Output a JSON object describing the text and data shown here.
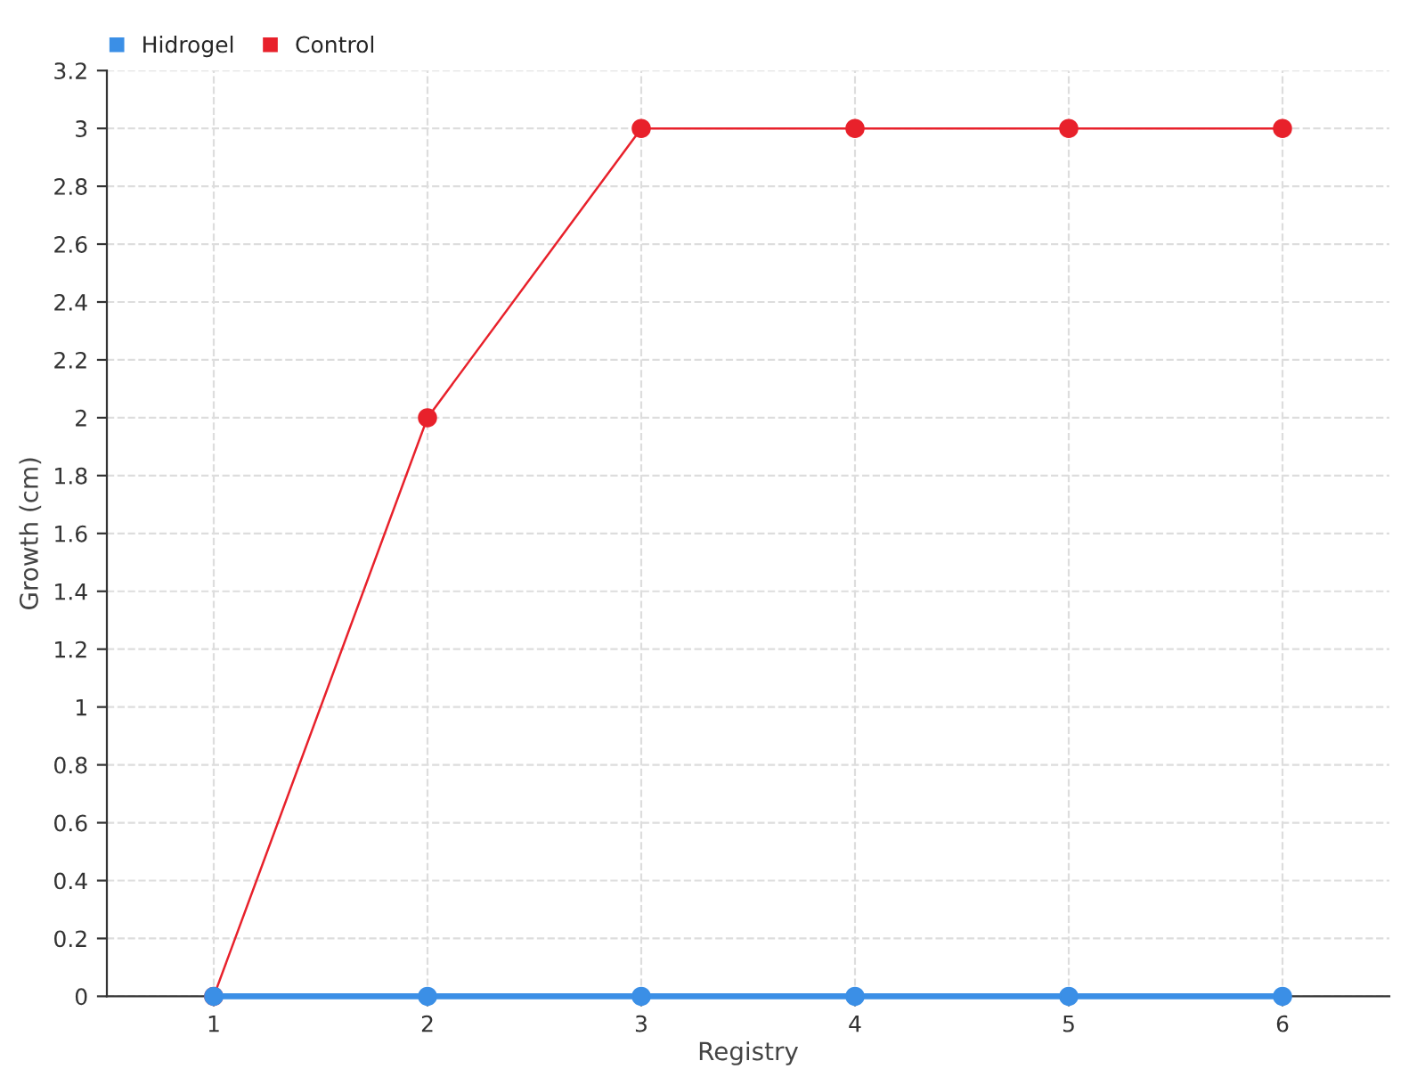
{
  "chart_data": {
    "type": "line",
    "xlabel": "Registry",
    "ylabel": "Growth (cm)",
    "x": [
      1,
      2,
      3,
      4,
      5,
      6
    ],
    "series": [
      {
        "name": "Hidrogel",
        "color": "#3b8fe6",
        "values": [
          0,
          0,
          0,
          0,
          0,
          0
        ]
      },
      {
        "name": "Control",
        "color": "#e8212b",
        "values": [
          0,
          2,
          3,
          3,
          3,
          3
        ]
      }
    ],
    "xlim": [
      0.5,
      6.5
    ],
    "xticks": [
      1,
      2,
      3,
      4,
      5,
      6
    ],
    "ylim": [
      0,
      3.2
    ],
    "yticks": [
      0,
      0.2,
      0.4,
      0.6,
      0.8,
      1,
      1.2,
      1.4,
      1.6,
      1.8,
      2,
      2.2,
      2.4,
      2.6,
      2.8,
      3,
      3.2
    ],
    "grid": true,
    "legend": "top left",
    "marker": "circle",
    "line_style": "solid"
  }
}
